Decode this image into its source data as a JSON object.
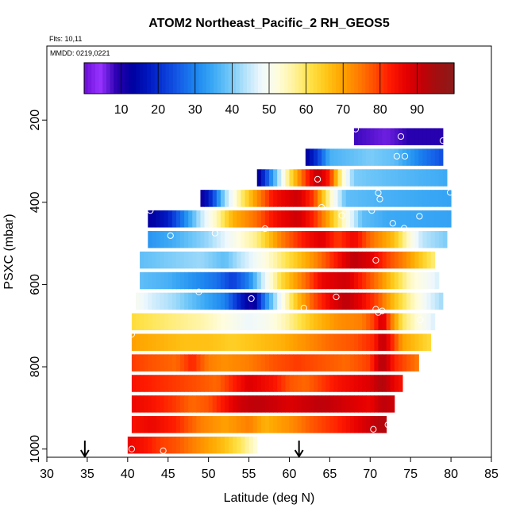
{
  "chart_data": {
    "type": "heatmap",
    "title": "ATOM2 Northeast_Pacific_2 RH_GEOS5",
    "flights_label": "Flts: 10,11",
    "dates_label": "MMDD: 0219,0221",
    "xlabel": "Latitude (deg N)",
    "ylabel": "PSXC (mbar)",
    "xlim": [
      30,
      85
    ],
    "ylim": [
      1020,
      20
    ],
    "x_ticks": [
      30,
      35,
      40,
      45,
      50,
      55,
      60,
      65,
      70,
      75,
      80,
      85
    ],
    "y_ticks": [
      200,
      400,
      600,
      800,
      1000
    ],
    "colorbar": {
      "range": [
        0,
        100
      ],
      "ticks": [
        10,
        20,
        30,
        40,
        50,
        60,
        70,
        80,
        90
      ],
      "colors": [
        "#6a0dd6",
        "#9933ff",
        "#2a00b0",
        "#0000a0",
        "#0018c0",
        "#0a3ad8",
        "#1560e8",
        "#1e88f0",
        "#3aa8f5",
        "#6ec6f8",
        "#b4e2fb",
        "#eef8fd",
        "#fffde0",
        "#fff3a0",
        "#ffe34a",
        "#ffc71a",
        "#ffa500",
        "#ff7f00",
        "#ff5000",
        "#ff1a00",
        "#e60000",
        "#c20008",
        "#a01010",
        "#8a1a1a"
      ]
    },
    "arrows_at_latitude": [
      34.7,
      61.2
    ],
    "rows": [
      {
        "p": 240,
        "lat_start": 68,
        "lat_end": 79,
        "rh": [
          [
            68,
            8
          ],
          [
            72,
            6
          ],
          [
            75,
            9
          ],
          [
            79,
            9
          ]
        ]
      },
      {
        "p": 290,
        "lat_start": 62,
        "lat_end": 79,
        "rh": [
          [
            62,
            12
          ],
          [
            63.5,
            22
          ],
          [
            65,
            36
          ],
          [
            70,
            40
          ],
          [
            73,
            38
          ],
          [
            76,
            30
          ],
          [
            79,
            24
          ]
        ]
      },
      {
        "p": 340,
        "lat_start": 56,
        "lat_end": 79.5,
        "rh": [
          [
            56,
            10
          ],
          [
            57.5,
            28
          ],
          [
            60,
            60
          ],
          [
            62,
            80
          ],
          [
            63.5,
            92
          ],
          [
            65,
            82
          ],
          [
            66.5,
            55
          ],
          [
            68,
            40
          ],
          [
            72,
            38
          ],
          [
            79.5,
            35
          ]
        ]
      },
      {
        "p": 390,
        "lat_start": 49,
        "lat_end": 80,
        "rh": [
          [
            49,
            10
          ],
          [
            50.5,
            22
          ],
          [
            52,
            42
          ],
          [
            54,
            58
          ],
          [
            56,
            72
          ],
          [
            58,
            84
          ],
          [
            61,
            90
          ],
          [
            63,
            80
          ],
          [
            65,
            55
          ],
          [
            67,
            38
          ],
          [
            72,
            36
          ],
          [
            80,
            34
          ]
        ]
      },
      {
        "p": 440,
        "lat_start": 42.5,
        "lat_end": 80,
        "rh": [
          [
            42.5,
            12
          ],
          [
            45,
            18
          ],
          [
            47,
            30
          ],
          [
            49,
            44
          ],
          [
            51,
            55
          ],
          [
            53,
            68
          ],
          [
            56,
            76
          ],
          [
            58,
            84
          ],
          [
            61,
            90
          ],
          [
            63,
            82
          ],
          [
            65,
            68
          ],
          [
            67,
            52
          ],
          [
            69,
            38
          ],
          [
            72,
            35
          ],
          [
            80,
            34
          ]
        ]
      },
      {
        "p": 490,
        "lat_start": 42.5,
        "lat_end": 79.5,
        "rh": [
          [
            42.5,
            32
          ],
          [
            46,
            36
          ],
          [
            50,
            42
          ],
          [
            53,
            50
          ],
          [
            56,
            58
          ],
          [
            59,
            74
          ],
          [
            62,
            84
          ],
          [
            64,
            88
          ],
          [
            66,
            80
          ],
          [
            68,
            86
          ],
          [
            70,
            76
          ],
          [
            73,
            66
          ],
          [
            75,
            52
          ],
          [
            76.5,
            44
          ],
          [
            79.5,
            40
          ]
        ]
      },
      {
        "p": 540,
        "lat_start": 41.5,
        "lat_end": 78,
        "rh": [
          [
            41.5,
            38
          ],
          [
            45,
            40
          ],
          [
            49,
            42
          ],
          [
            52,
            38
          ],
          [
            54,
            44
          ],
          [
            57,
            52
          ],
          [
            60,
            62
          ],
          [
            63,
            72
          ],
          [
            66,
            84
          ],
          [
            68,
            92
          ],
          [
            70,
            88
          ],
          [
            72,
            80
          ],
          [
            74,
            74
          ],
          [
            76,
            66
          ],
          [
            78,
            58
          ]
        ]
      },
      {
        "p": 590,
        "lat_start": 41.5,
        "lat_end": 78.5,
        "rh": [
          [
            41.5,
            38
          ],
          [
            45,
            36
          ],
          [
            48,
            32
          ],
          [
            51,
            28
          ],
          [
            53,
            22
          ],
          [
            55,
            30
          ],
          [
            57,
            48
          ],
          [
            59,
            62
          ],
          [
            62,
            76
          ],
          [
            64,
            86
          ],
          [
            67,
            90
          ],
          [
            69,
            82
          ],
          [
            71,
            74
          ],
          [
            73,
            64
          ],
          [
            75,
            54
          ],
          [
            78.5,
            46
          ]
        ]
      },
      {
        "p": 640,
        "lat_start": 41,
        "lat_end": 79,
        "rh": [
          [
            41,
            50
          ],
          [
            43,
            46
          ],
          [
            46,
            42
          ],
          [
            49,
            36
          ],
          [
            52,
            30
          ],
          [
            54,
            18
          ],
          [
            55.5,
            10
          ],
          [
            57,
            30
          ],
          [
            59,
            50
          ],
          [
            61,
            66
          ],
          [
            63,
            78
          ],
          [
            65,
            86
          ],
          [
            67,
            92
          ],
          [
            69,
            86
          ],
          [
            71,
            78
          ],
          [
            73,
            66
          ],
          [
            75,
            56
          ],
          [
            77,
            48
          ],
          [
            79,
            42
          ]
        ]
      },
      {
        "p": 690,
        "lat_start": 40.5,
        "lat_end": 78,
        "rh": [
          [
            40.5,
            62
          ],
          [
            43,
            60
          ],
          [
            46,
            58
          ],
          [
            49,
            56
          ],
          [
            52,
            52
          ],
          [
            55,
            48
          ],
          [
            57,
            50
          ],
          [
            59,
            54
          ],
          [
            61,
            60
          ],
          [
            63,
            66
          ],
          [
            66,
            72
          ],
          [
            69,
            74
          ],
          [
            70.5,
            80
          ],
          [
            71.5,
            90
          ],
          [
            72.5,
            76
          ],
          [
            74,
            60
          ],
          [
            76,
            52
          ],
          [
            78,
            46
          ]
        ]
      },
      {
        "p": 740,
        "lat_start": 40.5,
        "lat_end": 77.5,
        "rh": [
          [
            40.5,
            70
          ],
          [
            44,
            68
          ],
          [
            47,
            66
          ],
          [
            50,
            66
          ],
          [
            53,
            64
          ],
          [
            56,
            66
          ],
          [
            59,
            68
          ],
          [
            62,
            72
          ],
          [
            65,
            76
          ],
          [
            68,
            78
          ],
          [
            70.5,
            82
          ],
          [
            71.5,
            92
          ],
          [
            72.5,
            84
          ],
          [
            74,
            70
          ],
          [
            77.5,
            62
          ]
        ]
      },
      {
        "p": 790,
        "lat_start": 40.5,
        "lat_end": 76,
        "rh": [
          [
            40.5,
            80
          ],
          [
            43,
            78
          ],
          [
            46,
            76
          ],
          [
            48,
            82
          ],
          [
            50,
            74
          ],
          [
            52,
            72
          ],
          [
            55,
            74
          ],
          [
            58,
            78
          ],
          [
            61,
            80
          ],
          [
            64,
            78
          ],
          [
            67,
            76
          ],
          [
            70,
            80
          ],
          [
            71.5,
            94
          ],
          [
            73,
            82
          ],
          [
            76,
            74
          ]
        ]
      },
      {
        "p": 840,
        "lat_start": 40.5,
        "lat_end": 74,
        "rh": [
          [
            40.5,
            84
          ],
          [
            43,
            82
          ],
          [
            46,
            80
          ],
          [
            49,
            78
          ],
          [
            51,
            76
          ],
          [
            53,
            82
          ],
          [
            55,
            88
          ],
          [
            58,
            84
          ],
          [
            60,
            78
          ],
          [
            62,
            76
          ],
          [
            64,
            80
          ],
          [
            66,
            84
          ],
          [
            68,
            86
          ],
          [
            70,
            88
          ],
          [
            71.5,
            94
          ],
          [
            73,
            86
          ],
          [
            74,
            84
          ]
        ]
      },
      {
        "p": 890,
        "lat_start": 40.5,
        "lat_end": 73,
        "rh": [
          [
            40.5,
            86
          ],
          [
            43,
            84
          ],
          [
            46,
            80
          ],
          [
            48,
            76
          ],
          [
            50,
            78
          ],
          [
            52,
            84
          ],
          [
            54,
            90
          ],
          [
            56,
            92
          ],
          [
            58,
            90
          ],
          [
            60,
            88
          ],
          [
            62,
            90
          ],
          [
            64,
            92
          ],
          [
            66,
            90
          ],
          [
            68,
            88
          ],
          [
            70,
            86
          ],
          [
            71.5,
            92
          ],
          [
            73,
            90
          ]
        ]
      },
      {
        "p": 940,
        "lat_start": 40.5,
        "lat_end": 72,
        "rh": [
          [
            40.5,
            84
          ],
          [
            43,
            86
          ],
          [
            46,
            82
          ],
          [
            49,
            74
          ],
          [
            52,
            70
          ],
          [
            55,
            74
          ],
          [
            57,
            68
          ],
          [
            60,
            72
          ],
          [
            63,
            78
          ],
          [
            66,
            82
          ],
          [
            68,
            86
          ],
          [
            70,
            90
          ],
          [
            71.5,
            94
          ],
          [
            72,
            92
          ]
        ]
      },
      {
        "p": 990,
        "lat_start": 40,
        "lat_end": 56,
        "rh": [
          [
            40,
            86
          ],
          [
            42,
            84
          ],
          [
            44,
            80
          ],
          [
            46,
            78
          ],
          [
            48,
            74
          ],
          [
            50,
            70
          ],
          [
            52,
            66
          ],
          [
            54,
            60
          ],
          [
            56,
            52
          ]
        ]
      }
    ],
    "track_points": [
      [
        68.2,
        222
      ],
      [
        73.8,
        240
      ],
      [
        79,
        250
      ],
      [
        73.3,
        288
      ],
      [
        74.3,
        288
      ],
      [
        63.5,
        344
      ],
      [
        71,
        377
      ],
      [
        79.9,
        376
      ],
      [
        71.2,
        392
      ],
      [
        64,
        412
      ],
      [
        42.8,
        420
      ],
      [
        70.2,
        420
      ],
      [
        66.5,
        432
      ],
      [
        76.1,
        434
      ],
      [
        72.8,
        451
      ],
      [
        57,
        464
      ],
      [
        74.2,
        463
      ],
      [
        50.8,
        475
      ],
      [
        45.3,
        481
      ],
      [
        70.7,
        541
      ],
      [
        48.8,
        618
      ],
      [
        55.3,
        634
      ],
      [
        65.8,
        630
      ],
      [
        80.1,
        605
      ],
      [
        61.8,
        657
      ],
      [
        70.7,
        660
      ],
      [
        71,
        668
      ],
      [
        71.5,
        664
      ],
      [
        76.2,
        686
      ],
      [
        40.5,
        721
      ],
      [
        70.4,
        952
      ],
      [
        72.2,
        941
      ],
      [
        40.5,
        1000
      ],
      [
        44.4,
        1004
      ]
    ]
  }
}
